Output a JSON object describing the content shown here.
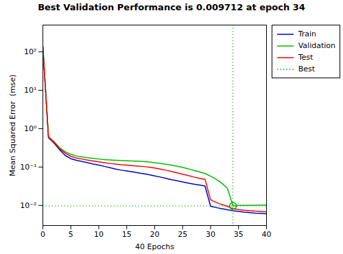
{
  "chart_data": {
    "type": "line",
    "title": "Best Validation Performance is 0.009712 at epoch 34",
    "xlabel": "40 Epochs",
    "ylabel": "Mean Squared Error  (mse)",
    "log": "y",
    "grid": false,
    "legend": "upper right",
    "xlim": [
      0,
      40
    ],
    "xticks": [
      0,
      5,
      10,
      15,
      20,
      25,
      30,
      35,
      40
    ],
    "ylim": [
      0.003,
      500
    ],
    "yticks": [
      {
        "value": 0.01,
        "label": "10⁻²"
      },
      {
        "value": 0.1,
        "label": "10⁻¹"
      },
      {
        "value": 1,
        "label": "10⁰"
      },
      {
        "value": 10,
        "label": "10¹"
      },
      {
        "value": 100,
        "label": "10²"
      }
    ],
    "x": [
      0,
      1,
      2,
      3,
      4,
      5,
      6,
      7,
      8,
      9,
      10,
      11,
      12,
      13,
      14,
      15,
      16,
      17,
      18,
      19,
      20,
      21,
      22,
      23,
      24,
      25,
      26,
      27,
      28,
      29,
      30,
      31,
      32,
      33,
      34,
      35,
      36,
      37,
      38,
      39,
      40
    ],
    "series": [
      {
        "name": "Train",
        "color": "#0000CD",
        "line_style": "solid",
        "values": [
          130,
          0.58,
          0.42,
          0.28,
          0.2,
          0.165,
          0.15,
          0.14,
          0.13,
          0.12,
          0.112,
          0.104,
          0.096,
          0.089,
          0.083,
          0.079,
          0.075,
          0.071,
          0.067,
          0.063,
          0.059,
          0.055,
          0.051,
          0.047,
          0.044,
          0.041,
          0.038,
          0.036,
          0.034,
          0.032,
          0.0095,
          0.0088,
          0.0082,
          0.0077,
          0.0073,
          0.007,
          0.0067,
          0.0065,
          0.0063,
          0.0062,
          0.006
        ]
      },
      {
        "name": "Validation",
        "color": "#00BB00",
        "line_style": "solid",
        "values": [
          140,
          0.62,
          0.46,
          0.32,
          0.25,
          0.215,
          0.195,
          0.185,
          0.175,
          0.168,
          0.162,
          0.157,
          0.153,
          0.15,
          0.148,
          0.146,
          0.144,
          0.142,
          0.14,
          0.135,
          0.13,
          0.125,
          0.118,
          0.112,
          0.105,
          0.098,
          0.09,
          0.082,
          0.075,
          0.068,
          0.058,
          0.048,
          0.038,
          0.028,
          0.009712,
          0.01,
          0.01,
          0.0101,
          0.0101,
          0.0102,
          0.0102
        ]
      },
      {
        "name": "Test",
        "color": "#FF0000",
        "line_style": "solid",
        "values": [
          135,
          0.6,
          0.44,
          0.3,
          0.23,
          0.19,
          0.172,
          0.162,
          0.152,
          0.144,
          0.137,
          0.13,
          0.124,
          0.119,
          0.115,
          0.112,
          0.109,
          0.106,
          0.103,
          0.099,
          0.094,
          0.089,
          0.083,
          0.077,
          0.071,
          0.065,
          0.06,
          0.055,
          0.051,
          0.048,
          0.014,
          0.012,
          0.0105,
          0.0095,
          0.0082,
          0.0078,
          0.0075,
          0.0073,
          0.0071,
          0.007,
          0.0068
        ]
      }
    ],
    "reference": {
      "name": "Best",
      "x": 34,
      "y": 0.009712,
      "color": "#00AA00",
      "line_style": "dotted",
      "marker": "circle"
    }
  }
}
